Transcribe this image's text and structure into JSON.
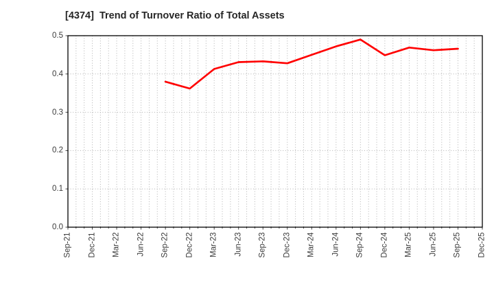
{
  "page": {
    "background": "#ffffff"
  },
  "chart_data": {
    "type": "line",
    "title": "[4374]  Trend of Turnover Ratio of Total Assets",
    "xlabel": "",
    "ylabel": "",
    "x_categories": [
      "Sep-21",
      "Dec-21",
      "Mar-22",
      "Jun-22",
      "Sep-22",
      "Dec-22",
      "Mar-23",
      "Jun-23",
      "Sep-23",
      "Dec-23",
      "Mar-24",
      "Jun-24",
      "Sep-24",
      "Dec-24",
      "Mar-25",
      "Jun-25",
      "Sep-25",
      "Dec-25"
    ],
    "y_tick_labels": [
      "0.0",
      "0.1",
      "0.2",
      "0.3",
      "0.4",
      "0.5"
    ],
    "ylim": [
      0.0,
      0.5
    ],
    "grid": "on",
    "grid_style": "dotted",
    "minor_vertical_divisions_per_interval": 3,
    "legend": "none",
    "series": [
      {
        "x_labels": [
          "Sep-22",
          "Dec-22",
          "Mar-23",
          "Jun-23",
          "Sep-23",
          "Dec-23",
          "Mar-24",
          "Jun-24",
          "Sep-24",
          "Dec-24",
          "Mar-25",
          "Jun-25",
          "Sep-25"
        ],
        "values": [
          0.38,
          0.362,
          0.413,
          0.431,
          0.433,
          0.428,
          0.45,
          0.472,
          0.49,
          0.449,
          0.469,
          0.462,
          0.466
        ],
        "color": "#ff0000"
      }
    ],
    "colors": {
      "line": "#ff0000",
      "grid": "#b0b0b0",
      "plot_border": "#000000",
      "title_text": "#262626",
      "tick_text": "#3a3a3a"
    }
  }
}
